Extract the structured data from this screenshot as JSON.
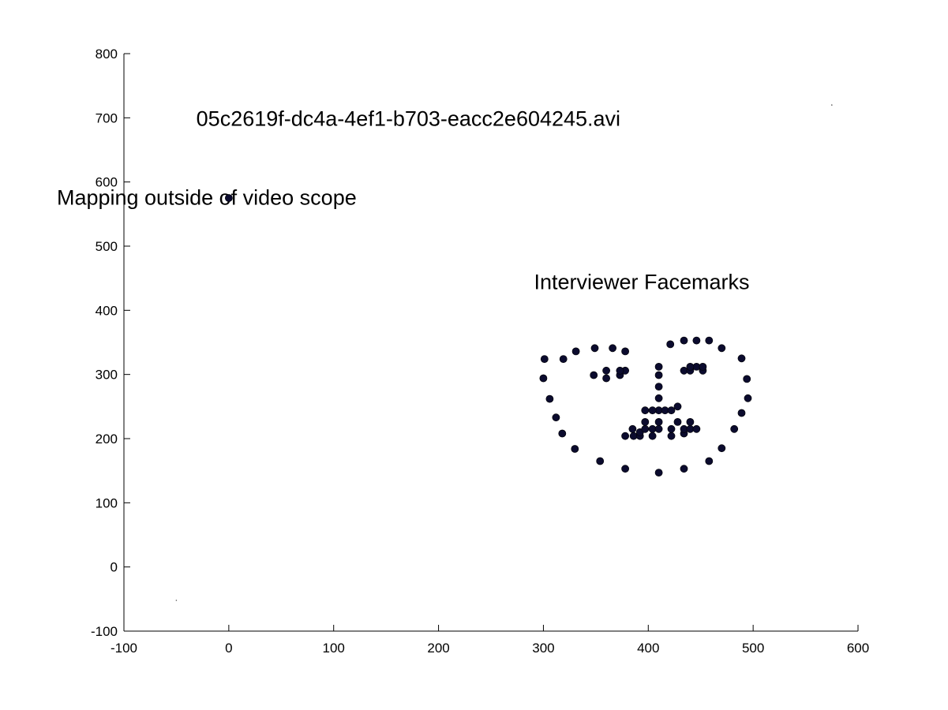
{
  "chart_data": {
    "type": "scatter",
    "xlim": [
      -100,
      600
    ],
    "ylim": [
      -100,
      800
    ],
    "xticks": [
      -100,
      0,
      100,
      200,
      300,
      400,
      500,
      600
    ],
    "yticks": [
      -100,
      0,
      100,
      200,
      300,
      400,
      500,
      600,
      700,
      800
    ],
    "grid": false,
    "annotations": [
      {
        "text": "05c2619f-dc4a-4ef1-b703-eacc2e604245.avi",
        "x": -31,
        "y": 700
      },
      {
        "text": "Mapping outside of video scope",
        "x": -164,
        "y": 577
      },
      {
        "text": "Interviewer Facemarks",
        "x": 291,
        "y": 445
      }
    ],
    "series": [
      {
        "marker_color": "#0b0b2e",
        "points": [
          [
            0,
            575
          ],
          [
            301,
            324
          ],
          [
            300,
            294
          ],
          [
            306,
            262
          ],
          [
            312,
            233
          ],
          [
            318,
            208
          ],
          [
            330,
            184
          ],
          [
            354,
            165
          ],
          [
            378,
            153
          ],
          [
            410,
            147
          ],
          [
            434,
            153
          ],
          [
            458,
            165
          ],
          [
            470,
            185
          ],
          [
            482,
            215
          ],
          [
            489,
            240
          ],
          [
            495,
            263
          ],
          [
            494,
            293
          ],
          [
            489,
            325
          ],
          [
            319,
            324
          ],
          [
            331,
            336
          ],
          [
            349,
            341
          ],
          [
            366,
            341
          ],
          [
            378,
            336
          ],
          [
            421,
            347
          ],
          [
            434,
            353
          ],
          [
            446,
            353
          ],
          [
            458,
            353
          ],
          [
            470,
            341
          ],
          [
            410,
            312
          ],
          [
            410,
            299
          ],
          [
            410,
            281
          ],
          [
            410,
            263
          ],
          [
            410,
            244
          ],
          [
            397,
            244
          ],
          [
            404,
            244
          ],
          [
            416,
            244
          ],
          [
            422,
            244
          ],
          [
            428,
            250
          ],
          [
            348,
            299
          ],
          [
            360,
            294
          ],
          [
            373,
            299
          ],
          [
            378,
            306
          ],
          [
            373,
            306
          ],
          [
            360,
            306
          ],
          [
            434,
            306
          ],
          [
            440,
            306
          ],
          [
            446,
            312
          ],
          [
            452,
            306
          ],
          [
            452,
            312
          ],
          [
            440,
            312
          ],
          [
            378,
            204
          ],
          [
            385,
            215
          ],
          [
            386,
            204
          ],
          [
            392,
            204
          ],
          [
            392,
            210
          ],
          [
            397,
            215
          ],
          [
            397,
            226
          ],
          [
            404,
            215
          ],
          [
            404,
            204
          ],
          [
            410,
            215
          ],
          [
            410,
            226
          ],
          [
            422,
            204
          ],
          [
            422,
            215
          ],
          [
            428,
            226
          ],
          [
            434,
            208
          ],
          [
            434,
            215
          ],
          [
            440,
            215
          ],
          [
            440,
            226
          ],
          [
            446,
            215
          ]
        ]
      },
      {
        "marker_color": "#555555",
        "points": [
          [
            575,
            720
          ],
          [
            -50,
            -52
          ]
        ]
      }
    ]
  }
}
